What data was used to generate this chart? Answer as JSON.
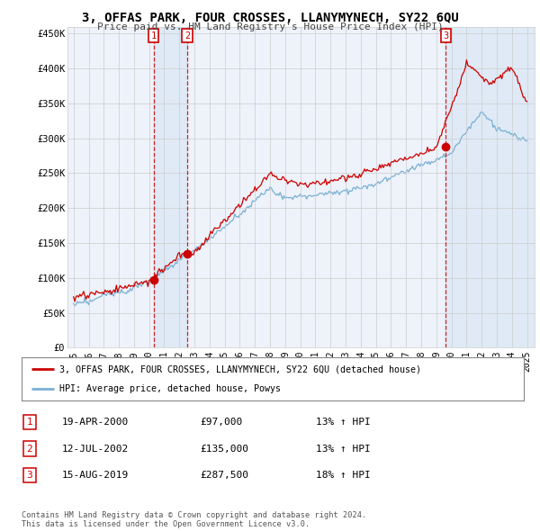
{
  "title": "3, OFFAS PARK, FOUR CROSSES, LLANYMYNECH, SY22 6QU",
  "subtitle": "Price paid vs. HM Land Registry's House Price Index (HPI)",
  "bg_color": "#ffffff",
  "plot_bg_color": "#eef2fa",
  "grid_color": "#cccccc",
  "red_color": "#cc0000",
  "blue_color": "#7ab0d4",
  "shade_color": "#dce8f5",
  "ylim": [
    0,
    460000
  ],
  "yticks": [
    0,
    50000,
    100000,
    150000,
    200000,
    250000,
    300000,
    350000,
    400000,
    450000
  ],
  "ytick_labels": [
    "£0",
    "£50K",
    "£100K",
    "£150K",
    "£200K",
    "£250K",
    "£300K",
    "£350K",
    "£400K",
    "£450K"
  ],
  "xlim_start": 1994.6,
  "xlim_end": 2025.5,
  "xtick_years": [
    1995,
    1996,
    1997,
    1998,
    1999,
    2000,
    2001,
    2002,
    2003,
    2004,
    2005,
    2006,
    2007,
    2008,
    2009,
    2010,
    2011,
    2012,
    2013,
    2014,
    2015,
    2016,
    2017,
    2018,
    2019,
    2020,
    2021,
    2022,
    2023,
    2024,
    2025
  ],
  "sale_points": [
    {
      "year": 2000.29,
      "price": 97000,
      "label": "1"
    },
    {
      "year": 2002.53,
      "price": 135000,
      "label": "2"
    },
    {
      "year": 2019.62,
      "price": 287500,
      "label": "3"
    }
  ],
  "legend_entries": [
    {
      "label": "3, OFFAS PARK, FOUR CROSSES, LLANYMYNECH, SY22 6QU (detached house)",
      "color": "#cc0000",
      "lw": 2
    },
    {
      "label": "HPI: Average price, detached house, Powys",
      "color": "#7ab0d4",
      "lw": 1.5
    }
  ],
  "transaction_rows": [
    {
      "num": "1",
      "date": "19-APR-2000",
      "price": "£97,000",
      "hpi": "13% ↑ HPI"
    },
    {
      "num": "2",
      "date": "12-JUL-2002",
      "price": "£135,000",
      "hpi": "13% ↑ HPI"
    },
    {
      "num": "3",
      "date": "15-AUG-2019",
      "price": "£287,500",
      "hpi": "18% ↑ HPI"
    }
  ],
  "footer": "Contains HM Land Registry data © Crown copyright and database right 2024.\nThis data is licensed under the Open Government Licence v3.0."
}
